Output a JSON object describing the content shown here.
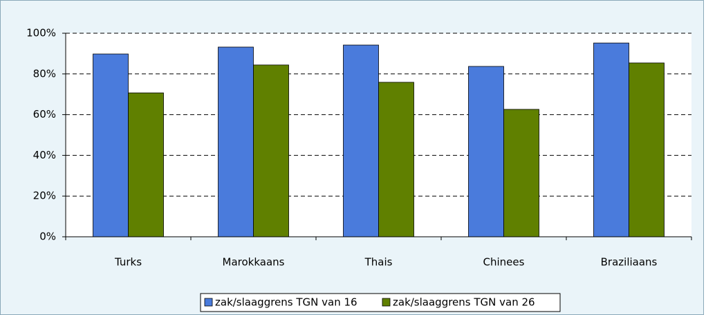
{
  "chart_data": {
    "type": "bar",
    "categories": [
      "Turks",
      "Marokkaans",
      "Thais",
      "Chinees",
      "Braziliaans"
    ],
    "series": [
      {
        "name": "zak/slaaggrens TGN van 16",
        "color": "#4a7bdc",
        "values": [
          89.8,
          93.2,
          94.2,
          83.7,
          95.2
        ]
      },
      {
        "name": "zak/slaaggrens TGN van 26",
        "color": "#608000",
        "values": [
          70.7,
          84.4,
          75.9,
          62.6,
          85.4
        ]
      }
    ],
    "ylim": [
      0,
      100
    ],
    "yticks": [
      {
        "value": 0,
        "label": "0%"
      },
      {
        "value": 20,
        "label": "20%"
      },
      {
        "value": 40,
        "label": "40%"
      },
      {
        "value": 60,
        "label": "60%"
      },
      {
        "value": 80,
        "label": "80%"
      },
      {
        "value": 100,
        "label": "100%"
      }
    ],
    "grid": true
  }
}
